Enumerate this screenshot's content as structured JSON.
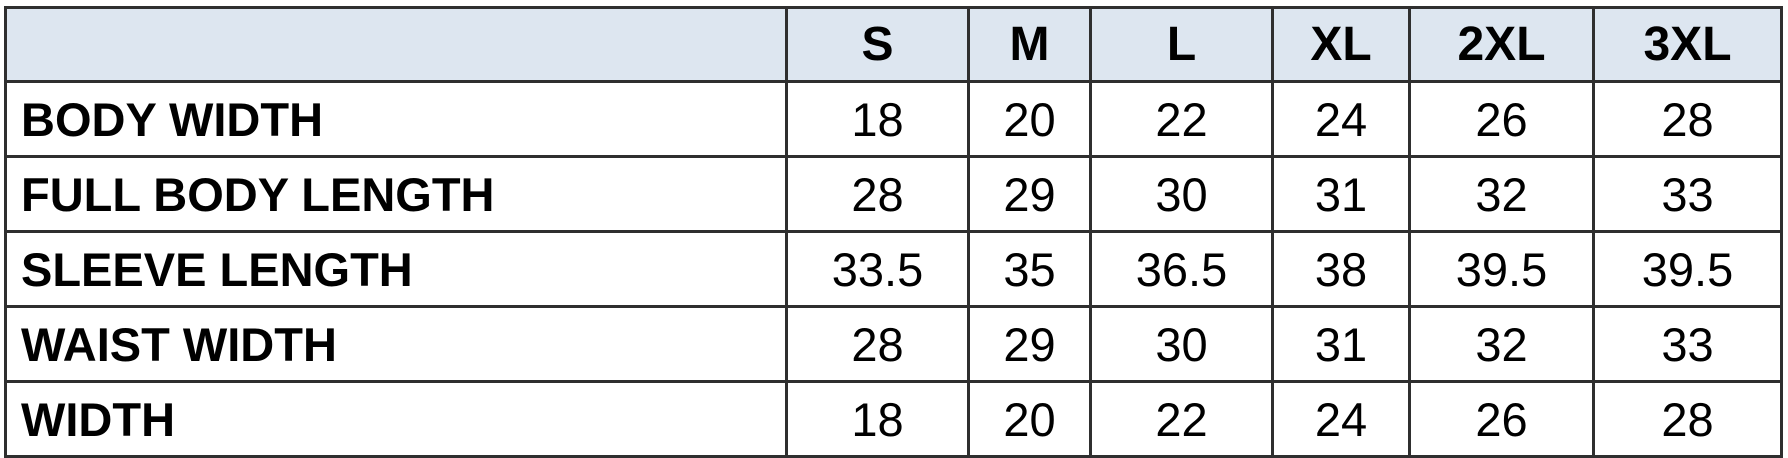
{
  "table": {
    "header": {
      "corner": "",
      "sizes": [
        "S",
        "M",
        "L",
        "XL",
        "2XL",
        "3XL"
      ]
    },
    "rows": [
      {
        "label": "BODY WIDTH",
        "values": [
          "18",
          "20",
          "22",
          "24",
          "26",
          "28"
        ]
      },
      {
        "label": "FULL BODY LENGTH",
        "values": [
          "28",
          "29",
          "30",
          "31",
          "32",
          "33"
        ]
      },
      {
        "label": "SLEEVE LENGTH",
        "values": [
          "33.5",
          "35",
          "36.5",
          "38",
          "39.5",
          "39.5"
        ]
      },
      {
        "label": "WAIST WIDTH",
        "values": [
          "28",
          "29",
          "30",
          "31",
          "32",
          "33"
        ]
      },
      {
        "label": "WIDTH",
        "values": [
          "18",
          "20",
          "22",
          "24",
          "26",
          "28"
        ]
      }
    ]
  },
  "colors": {
    "header_background": "#dde6f0",
    "border": "#2f2f2f",
    "text": "#000000",
    "body_background": "#ffffff"
  }
}
